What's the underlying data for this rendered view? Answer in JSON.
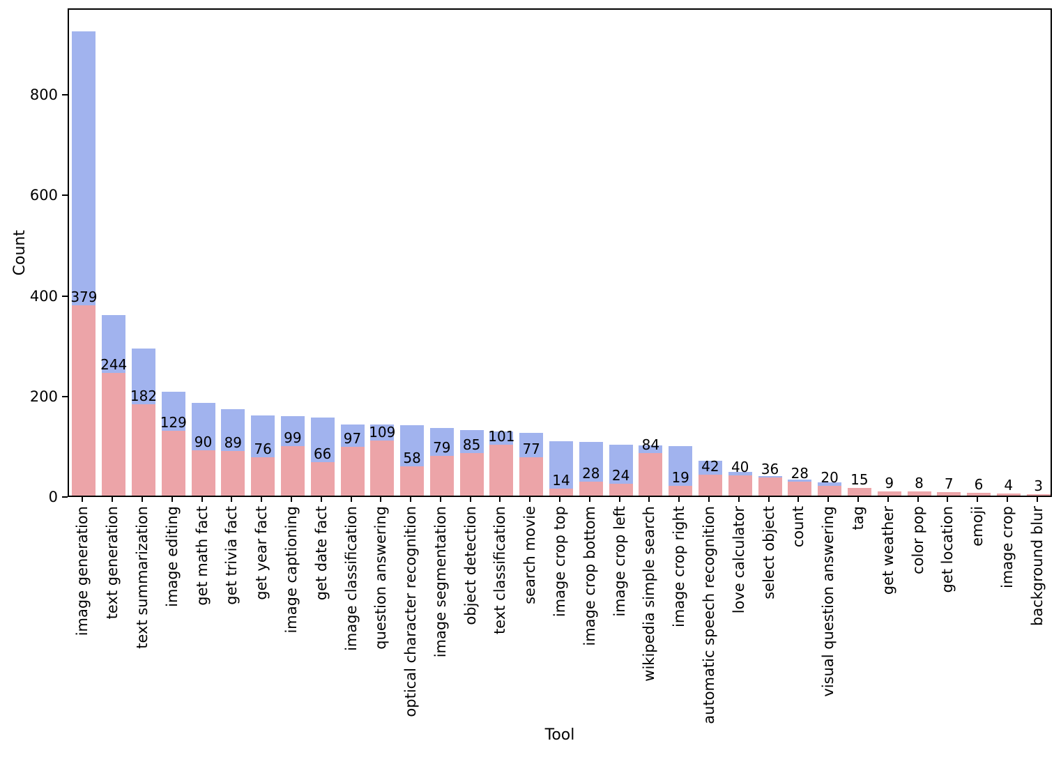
{
  "chart_data": {
    "type": "bar",
    "title": "",
    "xlabel": "Tool",
    "ylabel": "Count",
    "ylim": [
      0,
      972
    ],
    "yticks": [
      0,
      200,
      400,
      600,
      800
    ],
    "grid": false,
    "legend_position": "none",
    "bar_layout": "overlaid",
    "colors": {
      "background_series": "#a1b3ee",
      "foreground_series": "#eca4a8",
      "label_text": "#000000",
      "spine": "#000000"
    },
    "categories": [
      "image generation",
      "text generation",
      "text summarization",
      "image editing",
      "get math fact",
      "get trivia fact",
      "get year fact",
      "image captioning",
      "get date fact",
      "image classification",
      "question answering",
      "optical character recognition",
      "image segmentation",
      "object detection",
      "text classification",
      "search movie",
      "image crop top",
      "image crop bottom",
      "image crop left",
      "wikipedia simple search",
      "image crop right",
      "automatic speech recognition",
      "love calculator",
      "select object",
      "count",
      "visual question answering",
      "tag",
      "get weather",
      "color pop",
      "get location",
      "emoji",
      "image crop",
      "background blur"
    ],
    "series": [
      {
        "name": "blue-background-series",
        "color": "#a1b3ee",
        "values": [
          924,
          359,
          293,
          206,
          185,
          172,
          160,
          158,
          156,
          142,
          141,
          140,
          134,
          130,
          127,
          125,
          108,
          107,
          101,
          100,
          99,
          70,
          47,
          39,
          32,
          26,
          15,
          9,
          8,
          7,
          6,
          4,
          3
        ],
        "value_labels_shown": false
      },
      {
        "name": "pink-foreground-series",
        "color": "#eca4a8",
        "values": [
          379,
          244,
          182,
          129,
          90,
          89,
          76,
          99,
          66,
          97,
          109,
          58,
          79,
          85,
          101,
          77,
          14,
          28,
          24,
          84,
          19,
          42,
          40,
          36,
          28,
          20,
          15,
          9,
          8,
          7,
          6,
          4,
          3
        ],
        "value_labels_shown": true
      }
    ]
  }
}
